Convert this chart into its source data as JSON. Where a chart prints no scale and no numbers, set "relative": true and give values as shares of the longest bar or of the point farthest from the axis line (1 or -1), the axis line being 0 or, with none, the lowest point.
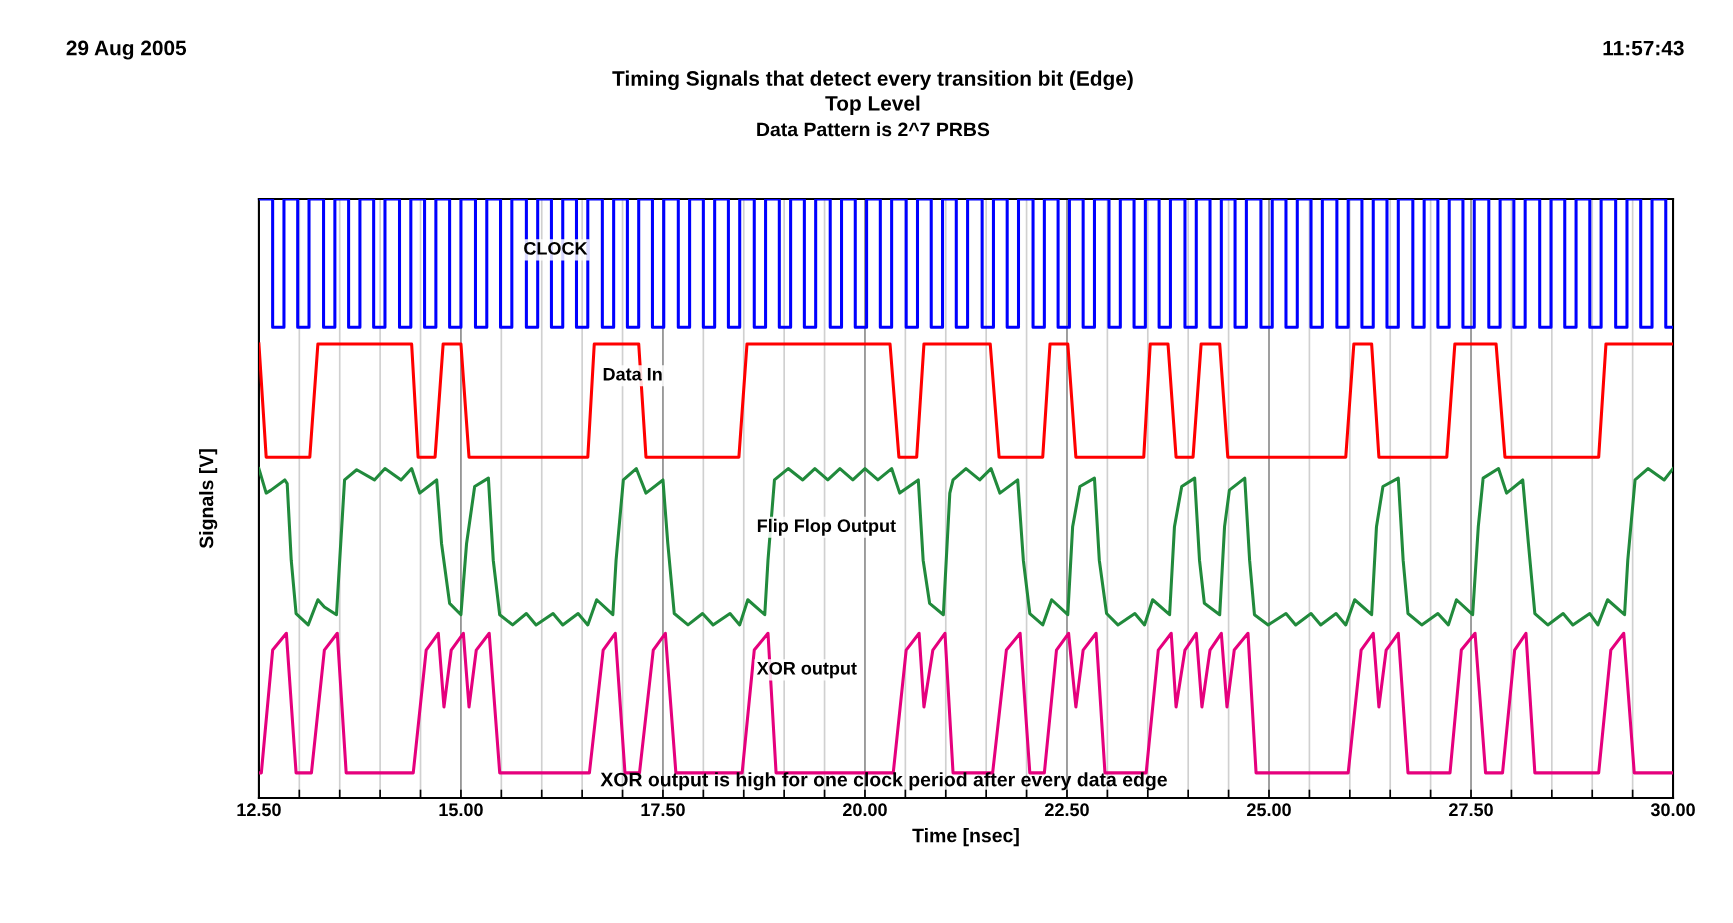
{
  "chart_data": {
    "type": "line",
    "title": "Timing Signals that detect every transition bit (Edge)",
    "subtitle": "Top Level\nData Pattern is 2^7 PRBS",
    "xlabel": "Time [nsec]",
    "ylabel": "Signals [V]",
    "relative": true,
    "grid": "x",
    "legend": false,
    "marker": "none",
    "line_style": "solid",
    "xlim": [
      12.5,
      30.0
    ],
    "xticks": [
      {
        "value": 12.5,
        "label": "12.50"
      },
      {
        "value": 13.0,
        "label": null
      },
      {
        "value": 13.5,
        "label": null
      },
      {
        "value": 14.0,
        "label": null
      },
      {
        "value": 14.5,
        "label": null
      },
      {
        "value": 15.0,
        "label": "15.00"
      },
      {
        "value": 15.5,
        "label": null
      },
      {
        "value": 16.0,
        "label": null
      },
      {
        "value": 16.5,
        "label": null
      },
      {
        "value": 17.0,
        "label": null
      },
      {
        "value": 17.5,
        "label": "17.50"
      },
      {
        "value": 18.0,
        "label": null
      },
      {
        "value": 18.5,
        "label": null
      },
      {
        "value": 19.0,
        "label": null
      },
      {
        "value": 19.5,
        "label": null
      },
      {
        "value": 20.0,
        "label": "20.00"
      },
      {
        "value": 20.5,
        "label": null
      },
      {
        "value": 21.0,
        "label": null
      },
      {
        "value": 21.5,
        "label": null
      },
      {
        "value": 22.0,
        "label": null
      },
      {
        "value": 22.5,
        "label": "22.50"
      },
      {
        "value": 23.0,
        "label": null
      },
      {
        "value": 23.5,
        "label": null
      },
      {
        "value": 24.0,
        "label": null
      },
      {
        "value": 24.5,
        "label": null
      },
      {
        "value": 25.0,
        "label": "25.00"
      },
      {
        "value": 25.5,
        "label": null
      },
      {
        "value": 26.0,
        "label": null
      },
      {
        "value": 26.5,
        "label": null
      },
      {
        "value": 27.0,
        "label": null
      },
      {
        "value": 27.5,
        "label": "27.50"
      },
      {
        "value": 28.0,
        "label": null
      },
      {
        "value": 28.5,
        "label": null
      },
      {
        "value": 29.0,
        "label": null
      },
      {
        "value": 29.5,
        "label": null
      },
      {
        "value": 30.0,
        "label": "30.00"
      }
    ],
    "annotations": [
      "29 Aug 2005",
      "11:57:43",
      "XOR output is high for one clock period after every data edge"
    ],
    "series": [
      {
        "name": "CLOCK",
        "type": "step",
        "color": "#0000ff",
        "x": [
          12.5,
          12.67,
          12.81,
          12.98,
          13.12,
          13.3,
          13.44,
          13.61,
          13.75,
          13.92,
          14.06,
          14.24,
          14.38,
          14.55,
          14.69,
          14.86,
          15.0,
          15.18,
          15.32,
          15.49,
          15.63,
          15.81,
          15.95,
          16.12,
          16.26,
          16.43,
          16.57,
          16.75,
          16.89,
          17.06,
          17.2,
          17.37,
          17.51,
          17.69,
          17.83,
          18.0,
          18.14,
          18.31,
          18.45,
          18.63,
          18.77,
          18.94,
          19.08,
          19.25,
          19.39,
          19.57,
          19.71,
          19.88,
          20.02,
          20.19,
          20.33,
          20.51,
          20.65,
          20.82,
          20.96,
          21.13,
          21.27,
          21.45,
          21.59,
          21.76,
          21.9,
          22.08,
          22.22,
          22.39,
          22.53,
          22.7,
          22.84,
          23.02,
          23.16,
          23.33,
          23.47,
          23.64,
          23.78,
          23.96,
          24.1,
          24.27,
          24.41,
          24.58,
          24.72,
          24.9,
          25.04,
          25.21,
          25.35,
          25.52,
          25.66,
          25.84,
          25.98,
          26.15,
          26.29,
          26.46,
          26.6,
          26.78,
          26.92,
          27.09,
          27.23,
          27.4,
          27.54,
          27.72,
          27.86,
          28.03,
          28.17,
          28.35,
          28.49,
          28.66,
          28.8,
          28.97,
          29.11,
          29.29,
          29.43,
          29.6,
          29.74,
          29.91,
          30.0
        ],
        "values": [
          1.0,
          0.786,
          1.0,
          0.786,
          1.0,
          0.786,
          1.0,
          0.786,
          1.0,
          0.786,
          1.0,
          0.786,
          1.0,
          0.786,
          1.0,
          0.786,
          1.0,
          0.786,
          1.0,
          0.786,
          1.0,
          0.786,
          1.0,
          0.786,
          1.0,
          0.786,
          1.0,
          0.786,
          1.0,
          0.786,
          1.0,
          0.786,
          1.0,
          0.786,
          1.0,
          0.786,
          1.0,
          0.786,
          1.0,
          0.786,
          1.0,
          0.786,
          1.0,
          0.786,
          1.0,
          0.786,
          1.0,
          0.786,
          1.0,
          0.786,
          1.0,
          0.786,
          1.0,
          0.786,
          1.0,
          0.786,
          1.0,
          0.786,
          1.0,
          0.786,
          1.0,
          0.786,
          1.0,
          0.786,
          1.0,
          0.786,
          1.0,
          0.786,
          1.0,
          0.786,
          1.0,
          0.786,
          1.0,
          0.786,
          1.0,
          0.786,
          1.0,
          0.786,
          1.0,
          0.786,
          1.0,
          0.786,
          1.0,
          0.786,
          1.0,
          0.786,
          1.0,
          0.786,
          1.0,
          0.786,
          1.0,
          0.786,
          1.0,
          0.786,
          1.0,
          0.786,
          1.0,
          0.786,
          1.0,
          0.786,
          1.0,
          0.786,
          1.0,
          0.786,
          1.0,
          0.786,
          1.0,
          0.786,
          1.0,
          0.786,
          1.0,
          0.786,
          0.786
        ]
      },
      {
        "name": "Data In",
        "color": "#ff0000",
        "x": [
          12.5,
          12.59,
          13.13,
          13.23,
          14.39,
          14.47,
          14.68,
          14.78,
          15.0,
          15.1,
          16.57,
          16.65,
          17.2,
          17.29,
          18.44,
          18.54,
          20.31,
          20.42,
          20.64,
          20.73,
          21.55,
          21.66,
          22.2,
          22.29,
          22.51,
          22.61,
          23.45,
          23.53,
          23.75,
          23.85,
          24.06,
          24.16,
          24.39,
          24.49,
          25.95,
          26.05,
          26.27,
          26.36,
          27.2,
          27.3,
          27.81,
          27.92,
          29.08,
          29.17,
          30.0
        ],
        "values": [
          0.758,
          0.569,
          0.569,
          0.758,
          0.758,
          0.569,
          0.569,
          0.758,
          0.758,
          0.569,
          0.569,
          0.758,
          0.758,
          0.569,
          0.569,
          0.758,
          0.758,
          0.569,
          0.569,
          0.758,
          0.758,
          0.569,
          0.569,
          0.758,
          0.758,
          0.569,
          0.569,
          0.758,
          0.758,
          0.569,
          0.569,
          0.758,
          0.758,
          0.569,
          0.569,
          0.758,
          0.758,
          0.569,
          0.569,
          0.758,
          0.758,
          0.569,
          0.569,
          0.758,
          0.758
        ]
      },
      {
        "name": "Flip Flop Output",
        "color": "#218a3c",
        "x": [
          12.5,
          12.59,
          12.65,
          12.82,
          12.85,
          12.9,
          12.96,
          13.11,
          13.23,
          13.31,
          13.46,
          13.5,
          13.56,
          13.71,
          13.93,
          14.06,
          14.26,
          14.39,
          14.49,
          14.7,
          14.76,
          14.86,
          15.0,
          15.07,
          15.17,
          15.34,
          15.4,
          15.48,
          15.64,
          15.81,
          15.93,
          16.14,
          16.26,
          16.45,
          16.57,
          16.68,
          16.88,
          16.92,
          17.01,
          17.17,
          17.29,
          17.5,
          17.56,
          17.64,
          17.81,
          17.99,
          18.12,
          18.33,
          18.45,
          18.55,
          18.76,
          18.8,
          18.88,
          19.05,
          19.23,
          19.38,
          19.54,
          19.69,
          19.85,
          20.0,
          20.16,
          20.33,
          20.43,
          20.66,
          20.72,
          20.8,
          20.97,
          21.05,
          21.09,
          21.25,
          21.42,
          21.56,
          21.67,
          21.89,
          21.96,
          22.04,
          22.2,
          22.31,
          22.51,
          22.57,
          22.66,
          22.84,
          22.9,
          22.99,
          23.13,
          23.34,
          23.46,
          23.56,
          23.77,
          23.83,
          23.92,
          24.08,
          24.14,
          24.2,
          24.39,
          24.45,
          24.51,
          24.7,
          24.76,
          24.82,
          24.99,
          25.21,
          25.33,
          25.52,
          25.64,
          25.83,
          25.95,
          26.06,
          26.27,
          26.33,
          26.41,
          26.6,
          26.66,
          26.72,
          26.89,
          27.09,
          27.22,
          27.32,
          27.52,
          27.59,
          27.65,
          27.84,
          27.94,
          28.14,
          28.21,
          28.29,
          28.45,
          28.64,
          28.76,
          28.97,
          29.07,
          29.19,
          29.4,
          29.44,
          29.53,
          29.69,
          29.89,
          30.0
        ],
        "values": [
          0.55,
          0.509,
          0.514,
          0.531,
          0.525,
          0.397,
          0.308,
          0.289,
          0.331,
          0.319,
          0.306,
          0.397,
          0.531,
          0.548,
          0.531,
          0.55,
          0.531,
          0.55,
          0.509,
          0.531,
          0.425,
          0.325,
          0.306,
          0.425,
          0.52,
          0.534,
          0.397,
          0.306,
          0.289,
          0.308,
          0.289,
          0.308,
          0.289,
          0.308,
          0.289,
          0.331,
          0.306,
          0.397,
          0.531,
          0.55,
          0.509,
          0.531,
          0.425,
          0.308,
          0.289,
          0.308,
          0.289,
          0.308,
          0.289,
          0.331,
          0.306,
          0.397,
          0.531,
          0.55,
          0.531,
          0.55,
          0.531,
          0.55,
          0.531,
          0.55,
          0.531,
          0.55,
          0.509,
          0.531,
          0.397,
          0.325,
          0.306,
          0.509,
          0.531,
          0.55,
          0.531,
          0.55,
          0.509,
          0.531,
          0.397,
          0.308,
          0.289,
          0.331,
          0.306,
          0.453,
          0.52,
          0.534,
          0.397,
          0.308,
          0.289,
          0.308,
          0.289,
          0.331,
          0.306,
          0.453,
          0.52,
          0.534,
          0.397,
          0.325,
          0.306,
          0.453,
          0.514,
          0.534,
          0.397,
          0.306,
          0.289,
          0.308,
          0.289,
          0.308,
          0.289,
          0.308,
          0.289,
          0.331,
          0.306,
          0.453,
          0.52,
          0.534,
          0.397,
          0.308,
          0.289,
          0.308,
          0.289,
          0.331,
          0.306,
          0.453,
          0.534,
          0.55,
          0.509,
          0.531,
          0.425,
          0.308,
          0.289,
          0.308,
          0.289,
          0.308,
          0.289,
          0.331,
          0.306,
          0.397,
          0.531,
          0.55,
          0.531,
          0.55
        ]
      },
      {
        "name": "XOR output",
        "color": "#e5007d",
        "x": [
          12.5,
          12.53,
          12.67,
          12.84,
          12.96,
          13.15,
          13.31,
          13.47,
          13.58,
          14.41,
          14.57,
          14.72,
          14.79,
          14.88,
          15.03,
          15.1,
          15.19,
          15.35,
          15.48,
          16.59,
          16.76,
          16.91,
          17.03,
          17.21,
          17.38,
          17.53,
          17.66,
          18.48,
          18.63,
          18.8,
          18.9,
          20.35,
          20.51,
          20.67,
          20.73,
          20.84,
          20.99,
          21.09,
          21.58,
          21.75,
          21.92,
          22.04,
          22.22,
          22.37,
          22.52,
          22.61,
          22.7,
          22.86,
          22.97,
          23.48,
          23.63,
          23.79,
          23.85,
          23.96,
          24.1,
          24.17,
          24.27,
          24.41,
          24.48,
          24.57,
          24.74,
          24.84,
          25.98,
          26.14,
          26.29,
          26.36,
          26.45,
          26.6,
          26.72,
          27.24,
          27.38,
          27.55,
          27.68,
          27.89,
          28.04,
          28.18,
          28.29,
          29.08,
          29.23,
          29.39,
          29.52,
          30.0
        ],
        "values": [
          0.042,
          0.042,
          0.247,
          0.275,
          0.042,
          0.042,
          0.247,
          0.275,
          0.042,
          0.042,
          0.247,
          0.275,
          0.152,
          0.247,
          0.275,
          0.152,
          0.247,
          0.275,
          0.042,
          0.042,
          0.247,
          0.275,
          0.042,
          0.042,
          0.247,
          0.275,
          0.042,
          0.042,
          0.247,
          0.275,
          0.042,
          0.042,
          0.247,
          0.275,
          0.152,
          0.247,
          0.275,
          0.042,
          0.042,
          0.247,
          0.275,
          0.042,
          0.042,
          0.247,
          0.275,
          0.152,
          0.247,
          0.275,
          0.042,
          0.042,
          0.247,
          0.275,
          0.152,
          0.247,
          0.275,
          0.152,
          0.247,
          0.275,
          0.152,
          0.247,
          0.275,
          0.042,
          0.042,
          0.247,
          0.275,
          0.152,
          0.247,
          0.275,
          0.042,
          0.042,
          0.247,
          0.275,
          0.042,
          0.042,
          0.247,
          0.275,
          0.042,
          0.042,
          0.247,
          0.275,
          0.042,
          0.042
        ]
      }
    ]
  }
}
